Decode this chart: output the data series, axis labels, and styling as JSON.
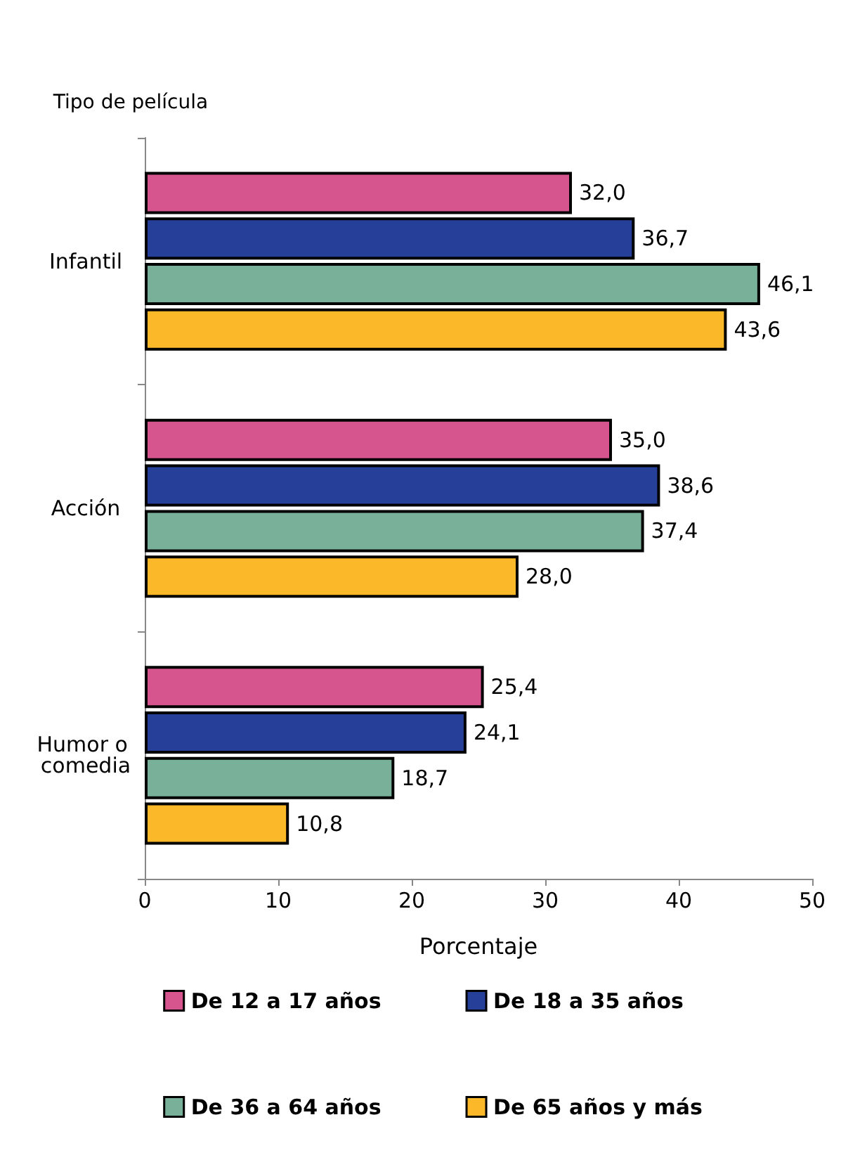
{
  "chart_data": {
    "type": "bar",
    "orientation": "horizontal",
    "ylabel": "Tipo de película",
    "xlabel": "Porcentaje",
    "categories": [
      "Infantil",
      "Acción",
      "Humor o comedia"
    ],
    "series": [
      {
        "name": "De 12 a 17 años",
        "color": "#d6558f",
        "values": [
          32.0,
          35.0,
          25.4
        ],
        "value_labels": [
          "32,0",
          "35,0",
          "25,4"
        ]
      },
      {
        "name": "De 18 a 35 años",
        "color": "#263f98",
        "values": [
          36.7,
          38.6,
          24.1
        ],
        "value_labels": [
          "36,7",
          "38,6",
          "24,1"
        ]
      },
      {
        "name": "De 36 a 64 años",
        "color": "#79b09a",
        "values": [
          46.1,
          37.4,
          18.7
        ],
        "value_labels": [
          "46,1",
          "37,4",
          "18,7"
        ]
      },
      {
        "name": "De 65 años y más",
        "color": "#fbb829",
        "values": [
          43.6,
          28.0,
          10.8
        ],
        "value_labels": [
          "43,6",
          "28,0",
          "10,8"
        ]
      }
    ],
    "xlim": [
      0,
      50
    ],
    "xticks": [
      0,
      10,
      20,
      30,
      40,
      50
    ],
    "grid": false,
    "legend": "bottom"
  }
}
